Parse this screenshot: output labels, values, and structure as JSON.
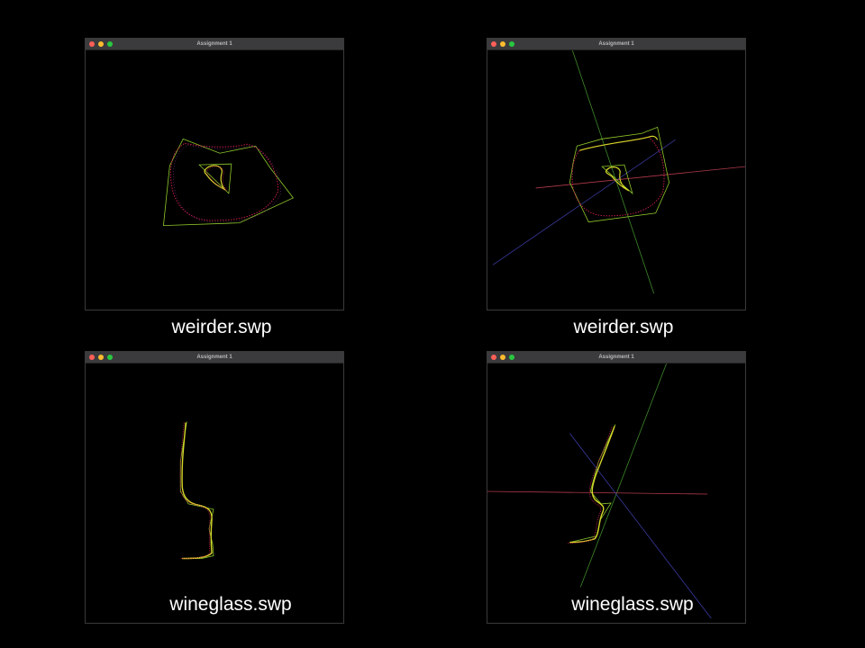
{
  "windows": [
    {
      "title": "Assignment 1",
      "caption": "weirder.swp"
    },
    {
      "title": "Assignment 1",
      "caption": "weirder.swp"
    },
    {
      "title": "Assignment 1",
      "caption": "wineglass.swp"
    },
    {
      "title": "Assignment 1",
      "caption": "wineglass.swp"
    }
  ],
  "colors": {
    "curve": "#d6d629",
    "curve_points": "#c21d4a",
    "control_polygon": "#8fc92a",
    "axis_x": "#b03a4a",
    "axis_y": "#3e8a2a",
    "axis_z": "#3a3aa0"
  }
}
